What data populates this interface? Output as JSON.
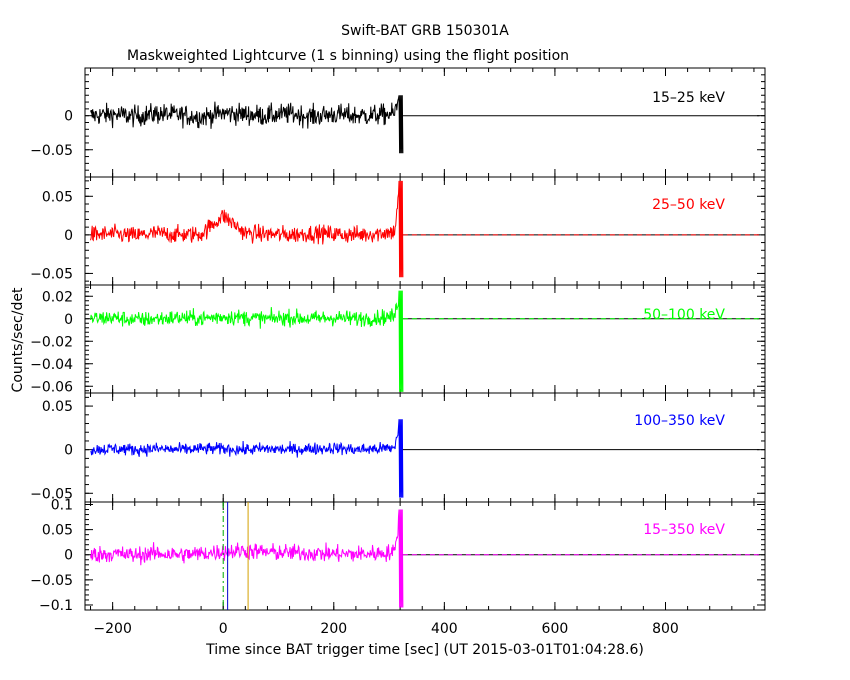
{
  "chart_data": {
    "type": "line",
    "title": "Swift-BAT GRB 150301A",
    "subtitle": "Maskweighted Lightcurve (1 s binning) using the flight position",
    "xlabel": "Time since BAT trigger time [sec] (UT 2015-03-01T01:04:28.6)",
    "ylabel": "Counts/sec/det",
    "xlim": [
      -250,
      980
    ],
    "x_ticks": [
      -200,
      0,
      200,
      400,
      600,
      800
    ],
    "x_tick_labels": [
      "−200",
      "0",
      "200",
      "400",
      "600",
      "800"
    ],
    "data_end": 325,
    "grid": false,
    "panels": [
      {
        "name": "15–25 keV",
        "color": "#000000",
        "ylim": [
          -0.09,
          0.07
        ],
        "y_ticks": [
          0,
          -0.05
        ],
        "y_tick_labels": [
          "0",
          "−0.05"
        ],
        "noise_sigma": 0.011,
        "final_dip": -0.055,
        "dashed_zero": false,
        "points": [
          [
            -240,
            0.0
          ],
          [
            -200,
            0.002
          ],
          [
            -160,
            -0.001
          ],
          [
            -120,
            0.003
          ],
          [
            -80,
            0.001
          ],
          [
            -40,
            -0.002
          ],
          [
            0,
            0.004
          ],
          [
            40,
            0.002
          ],
          [
            80,
            0.0
          ],
          [
            120,
            0.003
          ],
          [
            160,
            -0.001
          ],
          [
            200,
            0.002
          ],
          [
            240,
            0.0
          ],
          [
            280,
            0.001
          ],
          [
            310,
            0.003
          ],
          [
            320,
            0.03
          ],
          [
            322,
            -0.055
          ],
          [
            325,
            0.0
          ],
          [
            970,
            0.0
          ]
        ]
      },
      {
        "name": "25–50 keV",
        "color": "#ff0000",
        "ylim": [
          -0.065,
          0.075
        ],
        "y_ticks": [
          0.05,
          0,
          -0.05
        ],
        "y_tick_labels": [
          "0.05",
          "0",
          "−0.05"
        ],
        "noise_sigma": 0.008,
        "final_dip": -0.055,
        "dashed_zero": true,
        "points": [
          [
            -240,
            0.0
          ],
          [
            -200,
            0.001
          ],
          [
            -160,
            -0.001
          ],
          [
            -120,
            0.002
          ],
          [
            -80,
            0.0
          ],
          [
            -40,
            0.001
          ],
          [
            0,
            0.025
          ],
          [
            40,
            0.002
          ],
          [
            80,
            0.001
          ],
          [
            120,
            0.0
          ],
          [
            160,
            0.002
          ],
          [
            200,
            0.001
          ],
          [
            240,
            0.0
          ],
          [
            280,
            0.002
          ],
          [
            310,
            0.004
          ],
          [
            320,
            0.07
          ],
          [
            322,
            -0.055
          ],
          [
            325,
            0.0
          ],
          [
            970,
            0.0
          ]
        ]
      },
      {
        "name": "50–100 keV",
        "color": "#00ff00",
        "ylim": [
          -0.066,
          0.03
        ],
        "y_ticks": [
          0.02,
          0,
          -0.02,
          -0.04,
          -0.06
        ],
        "y_tick_labels": [
          "0.02",
          "0",
          "−0.02",
          "−0.04",
          "−0.06"
        ],
        "noise_sigma": 0.005,
        "final_dip": -0.065,
        "dashed_zero": true,
        "points": [
          [
            -240,
            0.0
          ],
          [
            -200,
            0.001
          ],
          [
            -160,
            -0.001
          ],
          [
            -120,
            0.0
          ],
          [
            -80,
            0.001
          ],
          [
            -40,
            0.0
          ],
          [
            0,
            0.002
          ],
          [
            40,
            0.001
          ],
          [
            80,
            0.0
          ],
          [
            120,
            0.001
          ],
          [
            160,
            0.0
          ],
          [
            200,
            0.001
          ],
          [
            240,
            0.0
          ],
          [
            280,
            0.001
          ],
          [
            310,
            0.002
          ],
          [
            320,
            0.025
          ],
          [
            322,
            -0.065
          ],
          [
            325,
            0.0
          ],
          [
            970,
            0.0
          ]
        ]
      },
      {
        "name": "100–350 keV",
        "color": "#0000ff",
        "ylim": [
          -0.06,
          0.065
        ],
        "y_ticks": [
          0.05,
          0,
          -0.05
        ],
        "y_tick_labels": [
          "0.05",
          "0",
          "−0.05"
        ],
        "noise_sigma": 0.005,
        "final_dip": -0.055,
        "dashed_zero": false,
        "points": [
          [
            -240,
            0.0
          ],
          [
            -200,
            0.001
          ],
          [
            -160,
            0.0
          ],
          [
            -120,
            0.001
          ],
          [
            -80,
            0.0
          ],
          [
            -40,
            0.001
          ],
          [
            0,
            0.001
          ],
          [
            40,
            0.0
          ],
          [
            80,
            0.001
          ],
          [
            120,
            0.0
          ],
          [
            160,
            0.001
          ],
          [
            200,
            0.002
          ],
          [
            240,
            0.0
          ],
          [
            280,
            0.001
          ],
          [
            310,
            0.002
          ],
          [
            320,
            0.035
          ],
          [
            322,
            -0.055
          ],
          [
            325,
            0.0
          ],
          [
            970,
            0.0
          ]
        ]
      },
      {
        "name": "15–350 keV",
        "color": "#ff00ff",
        "ylim": [
          -0.11,
          0.105
        ],
        "y_ticks": [
          0.1,
          0.05,
          0,
          -0.05,
          -0.1
        ],
        "y_tick_labels": [
          "0.1",
          "0.05",
          "0",
          "−0.05",
          "−0.1"
        ],
        "noise_sigma": 0.012,
        "final_dip": -0.105,
        "dashed_zero": true,
        "points": [
          [
            -240,
            0.0
          ],
          [
            -200,
            0.002
          ],
          [
            -160,
            -0.001
          ],
          [
            -120,
            0.003
          ],
          [
            -80,
            0.0
          ],
          [
            -40,
            0.002
          ],
          [
            0,
            0.006
          ],
          [
            40,
            0.008
          ],
          [
            80,
            0.005
          ],
          [
            120,
            0.004
          ],
          [
            160,
            0.003
          ],
          [
            200,
            0.002
          ],
          [
            240,
            0.001
          ],
          [
            280,
            0.003
          ],
          [
            310,
            0.005
          ],
          [
            320,
            0.09
          ],
          [
            322,
            -0.105
          ],
          [
            325,
            0.0
          ],
          [
            970,
            0.0
          ]
        ]
      }
    ],
    "markers": [
      {
        "x": 0,
        "color": "#00aa00",
        "style": "dashdot"
      },
      {
        "x": 8,
        "color": "#0000cc",
        "style": "solid"
      },
      {
        "x": 45,
        "color": "#d4a000",
        "style": "solid"
      }
    ]
  }
}
